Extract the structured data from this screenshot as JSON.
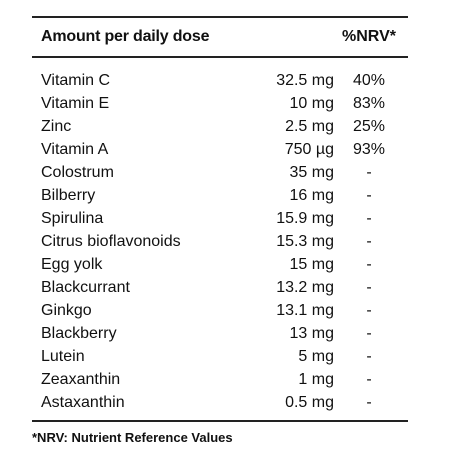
{
  "header": {
    "amount_label": "Amount per daily dose",
    "nrv_label": "%NRV*"
  },
  "rows": [
    {
      "name": "Vitamin C",
      "amount": "32.5 mg",
      "nrv": "40%"
    },
    {
      "name": "Vitamin E",
      "amount": "10 mg",
      "nrv": "83%"
    },
    {
      "name": "Zinc",
      "amount": "2.5 mg",
      "nrv": "25%"
    },
    {
      "name": "Vitamin A",
      "amount": "750 µg",
      "nrv": "93%"
    },
    {
      "name": "Colostrum",
      "amount": "35 mg",
      "nrv": "-"
    },
    {
      "name": "Bilberry",
      "amount": "16 mg",
      "nrv": "-"
    },
    {
      "name": "Spirulina",
      "amount": "15.9 mg",
      "nrv": "-"
    },
    {
      "name": "Citrus bioflavonoids",
      "amount": "15.3 mg",
      "nrv": "-"
    },
    {
      "name": "Egg yolk",
      "amount": "15 mg",
      "nrv": "-"
    },
    {
      "name": "Blackcurrant",
      "amount": "13.2 mg",
      "nrv": "-"
    },
    {
      "name": "Ginkgo",
      "amount": "13.1 mg",
      "nrv": "-"
    },
    {
      "name": "Blackberry",
      "amount": "13 mg",
      "nrv": "-"
    },
    {
      "name": "Lutein",
      "amount": "5 mg",
      "nrv": "-"
    },
    {
      "name": "Zeaxanthin",
      "amount": "1 mg",
      "nrv": "-"
    },
    {
      "name": "Astaxanthin",
      "amount": "0.5 mg",
      "nrv": "-"
    }
  ],
  "footnote": "*NRV: Nutrient Reference Values"
}
